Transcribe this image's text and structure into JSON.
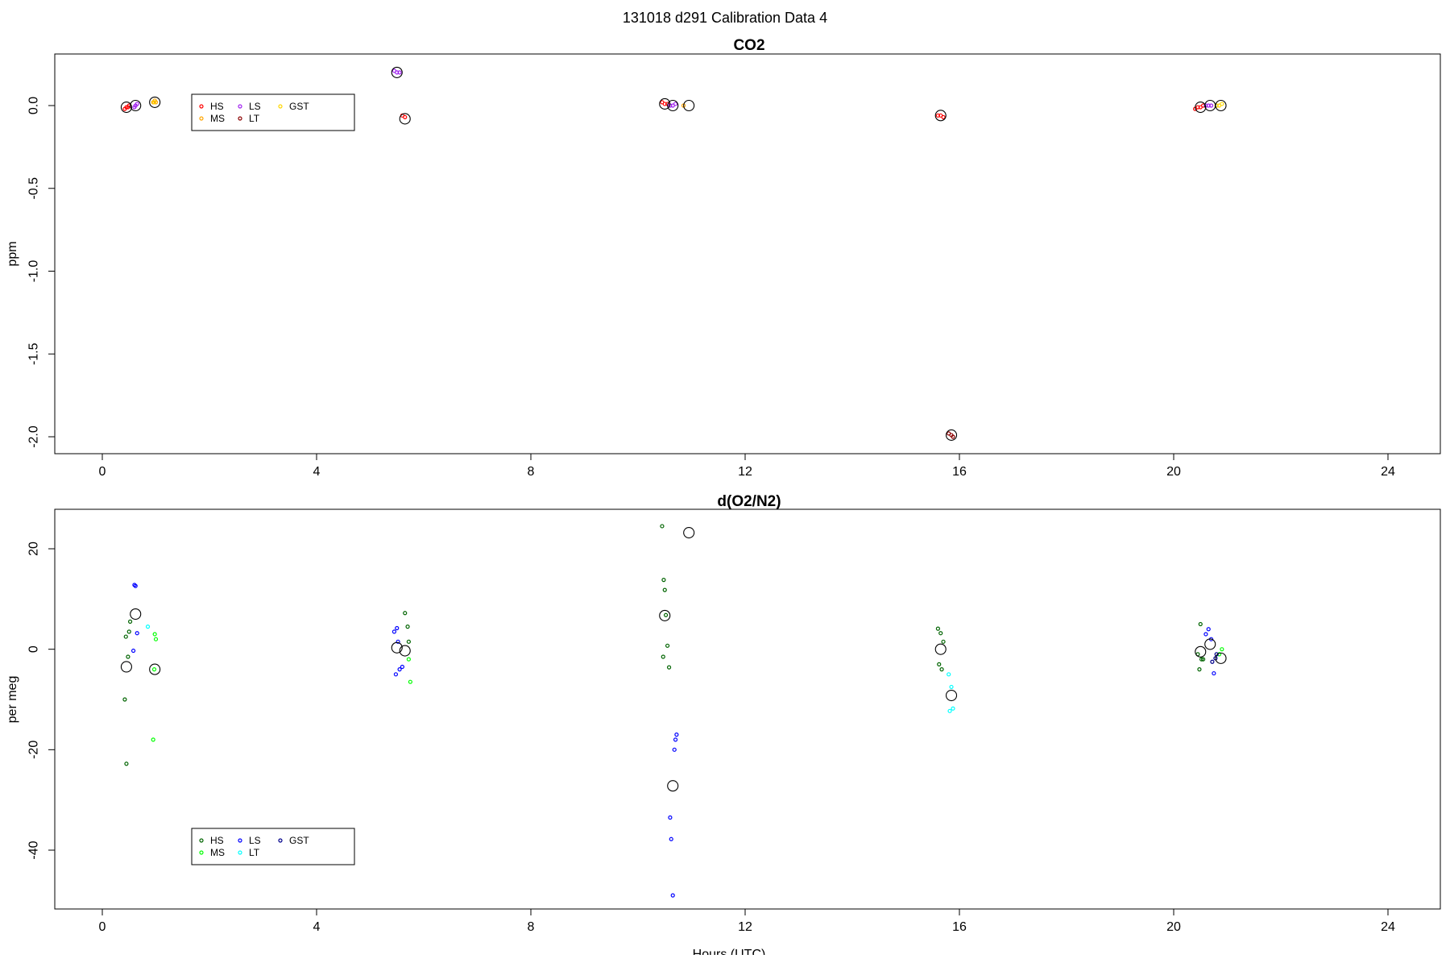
{
  "page": {
    "title": "131018   d291   Calibration Data 4"
  },
  "chart_data": [
    {
      "type": "scatter",
      "title": "CO2",
      "ylabel": "ppm",
      "xlabel": "",
      "xlim": [
        0,
        24
      ],
      "ylim": [
        -2.1,
        0.3
      ],
      "xticks": [
        0,
        4,
        8,
        12,
        16,
        20,
        24
      ],
      "yticks": [
        0.0,
        -0.5,
        -1.0,
        -1.5,
        -2.0
      ],
      "ytick_labels": [
        "0.0",
        "-0.5",
        "-1.0",
        "-1.5",
        "-2.0"
      ],
      "grid": false,
      "legend_position": "top-left",
      "legend": [
        {
          "name": "HS",
          "color": "#ff0000"
        },
        {
          "name": "MS",
          "color": "#ffa500"
        },
        {
          "name": "LS",
          "color": "#a020f0"
        },
        {
          "name": "LT",
          "color": "#8b0000"
        },
        {
          "name": "GST",
          "color": "#ffd700"
        }
      ],
      "series": [
        {
          "name": "HS",
          "color": "#ff0000",
          "x": [
            0.42,
            0.45,
            0.48,
            0.5,
            10.45,
            10.5,
            10.55,
            15.6,
            15.65,
            15.7,
            20.4,
            20.45,
            20.5,
            20.55,
            5.6,
            5.65
          ],
          "y": [
            -0.02,
            -0.01,
            -0.01,
            0.0,
            0.02,
            0.01,
            0.01,
            -0.06,
            -0.06,
            -0.07,
            -0.02,
            -0.01,
            -0.01,
            0.0,
            -0.06,
            -0.07
          ]
        },
        {
          "name": "MS",
          "color": "#ffa500",
          "x": [
            0.95,
            0.98,
            1.0,
            10.85
          ],
          "y": [
            0.02,
            0.03,
            0.02,
            0.0
          ]
        },
        {
          "name": "LS",
          "color": "#a020f0",
          "x": [
            0.6,
            0.62,
            0.65,
            5.45,
            5.5,
            5.55,
            10.6,
            10.65,
            10.7,
            20.6,
            20.65,
            20.7
          ],
          "y": [
            -0.01,
            0.0,
            0.01,
            0.21,
            0.2,
            0.2,
            0.0,
            0.0,
            0.01,
            0.0,
            0.0,
            0.0
          ]
        },
        {
          "name": "LT",
          "color": "#8b0000",
          "x": [
            15.8,
            15.85,
            15.88
          ],
          "y": [
            -1.98,
            -1.99,
            -2.0
          ]
        },
        {
          "name": "GST",
          "color": "#ffd700",
          "x": [
            20.8,
            20.85,
            20.9,
            0.97
          ],
          "y": [
            0.0,
            0.0,
            0.01,
            0.02
          ]
        },
        {
          "name": "mean",
          "color": "#000000",
          "x": [
            0.45,
            0.62,
            0.98,
            5.5,
            5.65,
            10.5,
            10.65,
            10.95,
            15.65,
            15.85,
            20.5,
            20.68,
            20.88
          ],
          "y": [
            -0.01,
            0.0,
            0.02,
            0.2,
            -0.08,
            0.01,
            0.0,
            0.0,
            -0.06,
            -1.99,
            -0.01,
            0.0,
            0.0
          ],
          "marker": "circle-large"
        }
      ]
    },
    {
      "type": "scatter",
      "title": "d(O2/N2)",
      "ylabel": "per meg",
      "xlabel": "Hours (UTC)",
      "xlim": [
        0,
        24
      ],
      "ylim": [
        -52,
        28
      ],
      "xticks": [
        0,
        4,
        8,
        12,
        16,
        20,
        24
      ],
      "yticks": [
        20,
        0,
        -20,
        -40
      ],
      "ytick_labels": [
        "20",
        "0",
        "-20",
        "-40"
      ],
      "grid": false,
      "legend_position": "bottom-left",
      "legend": [
        {
          "name": "HS",
          "color": "#006400"
        },
        {
          "name": "MS",
          "color": "#00ff00"
        },
        {
          "name": "LS",
          "color": "#0000ff"
        },
        {
          "name": "LT",
          "color": "#00ffff"
        },
        {
          "name": "GST",
          "color": "#00008b"
        }
      ],
      "series": [
        {
          "name": "HS",
          "color": "#006400",
          "x": [
            0.42,
            0.45,
            0.48,
            0.5,
            0.52,
            0.44,
            10.45,
            10.48,
            10.5,
            10.52,
            10.55,
            10.58,
            10.47,
            15.6,
            15.65,
            15.7,
            15.62,
            15.67,
            20.5,
            20.45,
            20.55,
            20.48,
            5.65,
            5.7,
            5.72,
            20.52
          ],
          "y": [
            -10,
            -22.8,
            -1.5,
            3.5,
            5.5,
            2.5,
            24.5,
            13.8,
            11.8,
            6.8,
            0.7,
            -3.6,
            -1.5,
            4.1,
            3.2,
            1.5,
            -3,
            -4,
            5,
            -1,
            -2,
            -4,
            7.2,
            4.5,
            1.5,
            -2
          ]
        },
        {
          "name": "MS",
          "color": "#00ff00",
          "x": [
            0.95,
            0.98,
            1.0,
            0.97,
            5.75,
            5.72,
            20.85,
            20.9
          ],
          "y": [
            -18,
            3,
            2,
            -4,
            -6.5,
            -2,
            -1,
            0
          ]
        },
        {
          "name": "LS",
          "color": "#0000ff",
          "x": [
            0.6,
            0.62,
            0.65,
            0.58,
            5.45,
            5.5,
            5.55,
            5.48,
            5.52,
            5.6,
            10.6,
            10.62,
            10.65,
            10.68,
            10.7,
            10.72,
            20.6,
            20.65,
            20.7,
            20.75
          ],
          "y": [
            12.8,
            12.6,
            3.2,
            -0.3,
            3.5,
            4.2,
            -4,
            -5,
            1.5,
            -3.5,
            -33.5,
            -37.8,
            -49,
            -20,
            -18,
            -17,
            3,
            4,
            2,
            -4.8
          ]
        },
        {
          "name": "LT",
          "color": "#00ffff",
          "x": [
            0.85,
            15.8,
            15.85,
            15.88,
            15.82
          ],
          "y": [
            4.5,
            -5,
            -7.5,
            -11.8,
            -12.3
          ]
        },
        {
          "name": "GST",
          "color": "#00008b",
          "x": [
            20.8,
            20.72,
            20.78
          ],
          "y": [
            -1,
            -2.5,
            -1.8
          ]
        },
        {
          "name": "mean",
          "color": "#000000",
          "x": [
            0.45,
            0.62,
            0.98,
            5.5,
            5.65,
            10.5,
            10.65,
            10.95,
            15.65,
            15.85,
            20.5,
            20.68,
            20.88
          ],
          "y": [
            -3.5,
            7,
            -4,
            0.3,
            -0.3,
            6.7,
            -27.2,
            23.2,
            0,
            -9.2,
            -0.5,
            1,
            -1.8
          ],
          "marker": "circle-large"
        }
      ]
    }
  ]
}
